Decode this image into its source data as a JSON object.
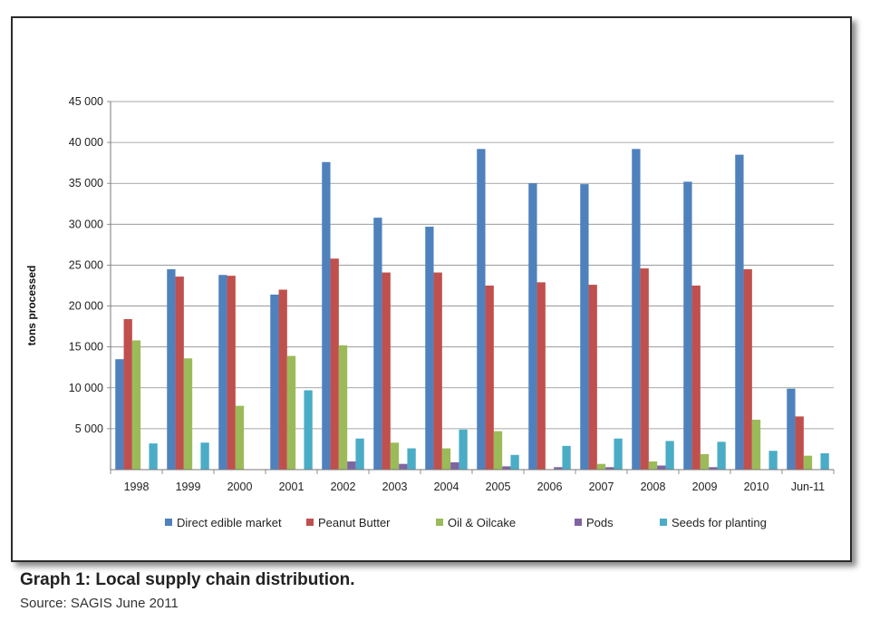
{
  "caption": "Graph 1: Local supply chain distribution.",
  "source": "Source: SAGIS June 2011",
  "chart_data": {
    "type": "bar",
    "title": "",
    "xlabel": "",
    "ylabel": "tons processed",
    "ylim": [
      0,
      45000
    ],
    "yticks": [
      {
        "value": 5000,
        "label": "5 000"
      },
      {
        "value": 10000,
        "label": "10 000"
      },
      {
        "value": 15000,
        "label": "15 000"
      },
      {
        "value": 20000,
        "label": "20 000"
      },
      {
        "value": 25000,
        "label": "25 000"
      },
      {
        "value": 30000,
        "label": "30 000"
      },
      {
        "value": 35000,
        "label": "35 000"
      },
      {
        "value": 40000,
        "label": "40 000"
      },
      {
        "value": 45000,
        "label": "45 000"
      }
    ],
    "grid": true,
    "legend_position": "bottom",
    "categories": [
      "1998",
      "1999",
      "2000",
      "2001",
      "2002",
      "2003",
      "2004",
      "2005",
      "2006",
      "2007",
      "2008",
      "2009",
      "2010",
      "Jun-11"
    ],
    "series": [
      {
        "name": "Direct edible market",
        "color": "#4f81bd",
        "values": [
          13500,
          24500,
          23800,
          21400,
          37600,
          30800,
          29700,
          39200,
          35000,
          34900,
          39200,
          35200,
          38500,
          9900
        ]
      },
      {
        "name": "Peanut Butter",
        "color": "#c0504d",
        "values": [
          18400,
          23600,
          23700,
          22000,
          25800,
          24100,
          24100,
          22500,
          22900,
          22600,
          24600,
          22500,
          24500,
          6500
        ]
      },
      {
        "name": "Oil & Oilcake",
        "color": "#9bbb59",
        "values": [
          15800,
          13600,
          7800,
          13900,
          15200,
          3300,
          2600,
          4700,
          0,
          700,
          1000,
          1900,
          6100,
          1700
        ]
      },
      {
        "name": "Pods",
        "color": "#8064a2",
        "values": [
          0,
          0,
          0,
          0,
          1000,
          700,
          900,
          400,
          300,
          300,
          500,
          300,
          0,
          0
        ]
      },
      {
        "name": "Seeds for planting",
        "color": "#4bacc6",
        "values": [
          3200,
          3300,
          0,
          9700,
          3800,
          2600,
          4900,
          1800,
          2900,
          3800,
          3500,
          3400,
          2300,
          2000
        ]
      }
    ]
  }
}
